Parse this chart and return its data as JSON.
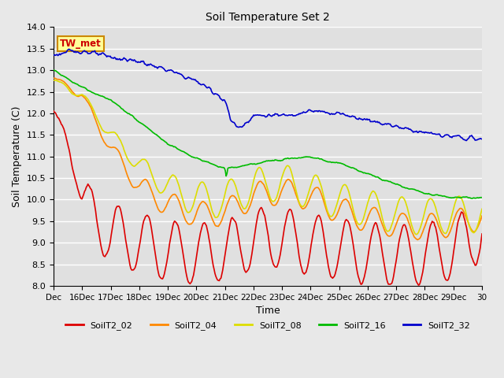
{
  "title": "Soil Temperature Set 2",
  "xlabel": "Time",
  "ylabel": "Soil Temperature (C)",
  "ylim": [
    8.0,
    14.0
  ],
  "yticks": [
    8.0,
    8.5,
    9.0,
    9.5,
    10.0,
    10.5,
    11.0,
    11.5,
    12.0,
    12.5,
    13.0,
    13.5,
    14.0
  ],
  "xtick_labels": [
    "Dec",
    "16Dec",
    "17Dec",
    "18Dec",
    "19Dec",
    "20Dec",
    "21Dec",
    "22Dec",
    "23Dec",
    "24Dec",
    "25Dec",
    "26Dec",
    "27Dec",
    "28Dec",
    "29Dec",
    "30"
  ],
  "xtick_positions": [
    0,
    1,
    2,
    3,
    4,
    5,
    6,
    7,
    8,
    9,
    10,
    11,
    12,
    13,
    14,
    15
  ],
  "series_colors": {
    "SoilT2_02": "#dd0000",
    "SoilT2_04": "#ff8800",
    "SoilT2_08": "#dddd00",
    "SoilT2_16": "#00bb00",
    "SoilT2_32": "#0000cc"
  },
  "annotation_text": "TW_met",
  "annotation_color": "#cc0000",
  "annotation_bg": "#ffff99",
  "annotation_border": "#cc8800",
  "fig_bg_color": "#e8e8e8",
  "plot_bg_color": "#e0e0e0",
  "grid_color": "#ffffff",
  "n_points": 500
}
